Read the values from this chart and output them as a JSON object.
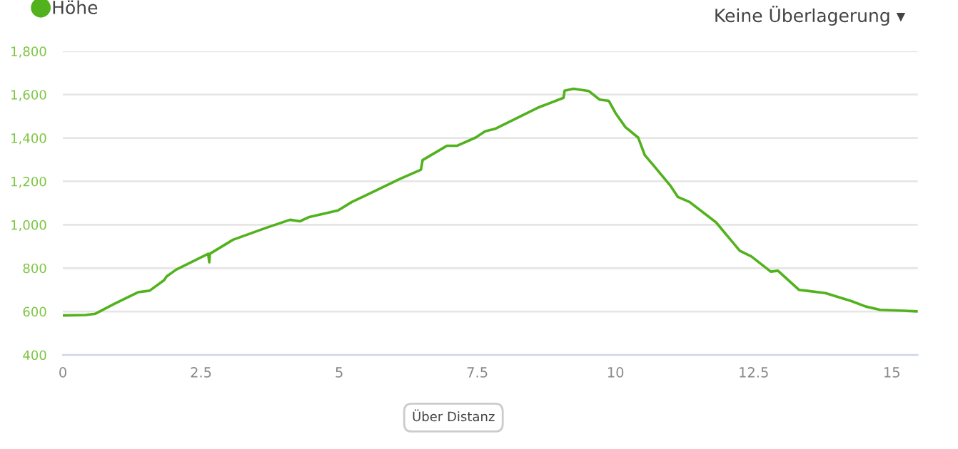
{
  "chart_data": {
    "type": "line",
    "x": [
      0,
      0.41,
      0.59,
      0.93,
      1.36,
      1.57,
      1.83,
      1.88,
      2.05,
      2.63,
      2.65,
      2.66,
      3.08,
      3.68,
      4.11,
      4.29,
      4.46,
      4.98,
      5.23,
      6.09,
      6.48,
      6.51,
      6.91,
      6.95,
      7.13,
      7.47,
      7.64,
      7.82,
      8.59,
      9.06,
      9.08,
      9.24,
      9.52,
      9.71,
      9.88,
      10.01,
      10.18,
      10.41,
      10.53,
      10.7,
      11.0,
      11.13,
      11.34,
      11.82,
      12.25,
      12.46,
      12.81,
      12.94,
      13.32,
      13.45,
      13.8,
      14.27,
      14.53,
      14.79,
      15.47
    ],
    "series": [
      {
        "name": "Höhe",
        "color": "#52b21d",
        "values": [
          582,
          584,
          590,
          635,
          689,
          696,
          744,
          762,
          793,
          866,
          827,
          866,
          931,
          986,
          1023,
          1016,
          1036,
          1066,
          1105,
          1210,
          1254,
          1298,
          1358,
          1364,
          1364,
          1402,
          1431,
          1442,
          1539,
          1585,
          1618,
          1627,
          1616,
          1577,
          1571,
          1511,
          1450,
          1402,
          1321,
          1270,
          1178,
          1128,
          1105,
          1011,
          880,
          854,
          784,
          788,
          700,
          696,
          685,
          648,
          623,
          608,
          601
        ]
      }
    ],
    "xlim": [
      0,
      15.47
    ],
    "xticks": [
      0,
      2.5,
      5,
      7.5,
      10,
      12.5,
      15
    ],
    "ylim": [
      400,
      1800
    ],
    "yticks": [
      {
        "value": 400,
        "label": "400"
      },
      {
        "value": 600,
        "label": "600"
      },
      {
        "value": 800,
        "label": "800"
      },
      {
        "value": 1000,
        "label": "1,000"
      },
      {
        "value": 1200,
        "label": "1,200"
      },
      {
        "value": 1400,
        "label": "1,400"
      },
      {
        "value": 1600,
        "label": "1,600"
      },
      {
        "value": 1800,
        "label": "1,800"
      }
    ],
    "grid": "y",
    "legend": "top left",
    "marker": "none",
    "line_style": "solid",
    "annotations": [
      "Keine Überlagerung ▾",
      "Über Distanz"
    ]
  }
}
